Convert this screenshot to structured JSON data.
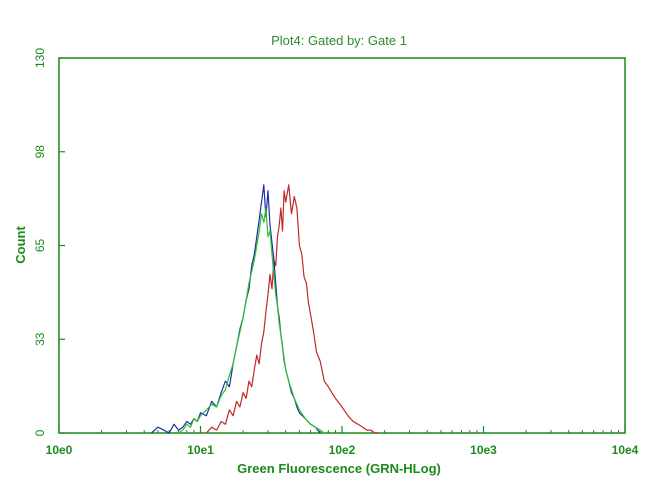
{
  "chart_data": {
    "type": "line",
    "title": "Plot4:  Gated by: Gate 1",
    "xlabel": "Green Fluorescence (GRN-HLog)",
    "ylabel": "Count",
    "x_scale": "log",
    "xlim": [
      1,
      10000
    ],
    "ylim": [
      0,
      130
    ],
    "x_ticks": [
      "10e0",
      "10e1",
      "10e2",
      "10e3",
      "10e4"
    ],
    "y_ticks": [
      "0",
      "33",
      "65",
      "98",
      "130"
    ],
    "grid": false,
    "series": [
      {
        "color": "#c0282a",
        "x": [
          11,
          12,
          13,
          14,
          15,
          16,
          17,
          18,
          19,
          20,
          21,
          22,
          23,
          24,
          25,
          26,
          27,
          28,
          29,
          30,
          31,
          32,
          33,
          34,
          35,
          36,
          37,
          38,
          39,
          40,
          42,
          44,
          46,
          48,
          50,
          52,
          54,
          56,
          58,
          60,
          63,
          66,
          70,
          75,
          80,
          90,
          100,
          110,
          120,
          130,
          140,
          150,
          160,
          170,
          180
        ],
        "values": [
          0,
          2,
          1,
          4,
          3,
          8,
          6,
          11,
          9,
          14,
          12,
          18,
          16,
          22,
          27,
          24,
          31,
          35,
          42,
          48,
          55,
          50,
          60,
          58,
          68,
          72,
          78,
          70,
          84,
          80,
          86,
          76,
          82,
          78,
          65,
          62,
          54,
          52,
          45,
          41,
          35,
          28,
          25,
          18,
          16,
          12,
          9,
          6,
          4,
          3,
          2,
          1,
          1,
          0,
          0
        ]
      },
      {
        "color": "#1c2fa8",
        "x": [
          4.5,
          5,
          5.5,
          6,
          6.5,
          7,
          7.5,
          8,
          8.5,
          9,
          9.5,
          10,
          11,
          12,
          13,
          14,
          15,
          16,
          17,
          18,
          19,
          20,
          21,
          22,
          23,
          24,
          25,
          26,
          27,
          28,
          29,
          30,
          31,
          32,
          33,
          34,
          35,
          36,
          37,
          38,
          39,
          40,
          42,
          44,
          46,
          48,
          50,
          55,
          60,
          65,
          70
        ],
        "values": [
          0,
          2,
          1,
          0,
          3,
          1,
          2,
          4,
          3,
          5,
          4,
          7,
          6,
          11,
          9,
          14,
          18,
          16,
          24,
          30,
          36,
          40,
          46,
          50,
          58,
          62,
          68,
          74,
          80,
          86,
          75,
          84,
          72,
          66,
          60,
          52,
          44,
          40,
          34,
          30,
          25,
          22,
          18,
          14,
          12,
          9,
          7,
          5,
          3,
          2,
          0
        ]
      },
      {
        "color": "#2ebf2e",
        "x": [
          7,
          7.5,
          8,
          8.5,
          9,
          9.5,
          10,
          11,
          12,
          13,
          14,
          15,
          16,
          17,
          18,
          19,
          20,
          21,
          22,
          23,
          24,
          25,
          26,
          27,
          28,
          29,
          30,
          31,
          32,
          33,
          34,
          35,
          36,
          37,
          38,
          39,
          40,
          42,
          44,
          46,
          48,
          50,
          55,
          60,
          65,
          70,
          75
        ],
        "values": [
          0,
          1,
          3,
          2,
          5,
          4,
          6,
          8,
          10,
          9,
          13,
          15,
          20,
          24,
          30,
          35,
          40,
          46,
          52,
          56,
          60,
          65,
          70,
          76,
          73,
          78,
          68,
          70,
          62,
          55,
          48,
          44,
          38,
          34,
          30,
          26,
          22,
          18,
          15,
          12,
          10,
          8,
          5,
          3,
          2,
          1,
          0
        ]
      }
    ]
  },
  "colors": {
    "frame": "#1a8a1a",
    "text": "#1a8a1a",
    "title": "#2e8b2e"
  }
}
